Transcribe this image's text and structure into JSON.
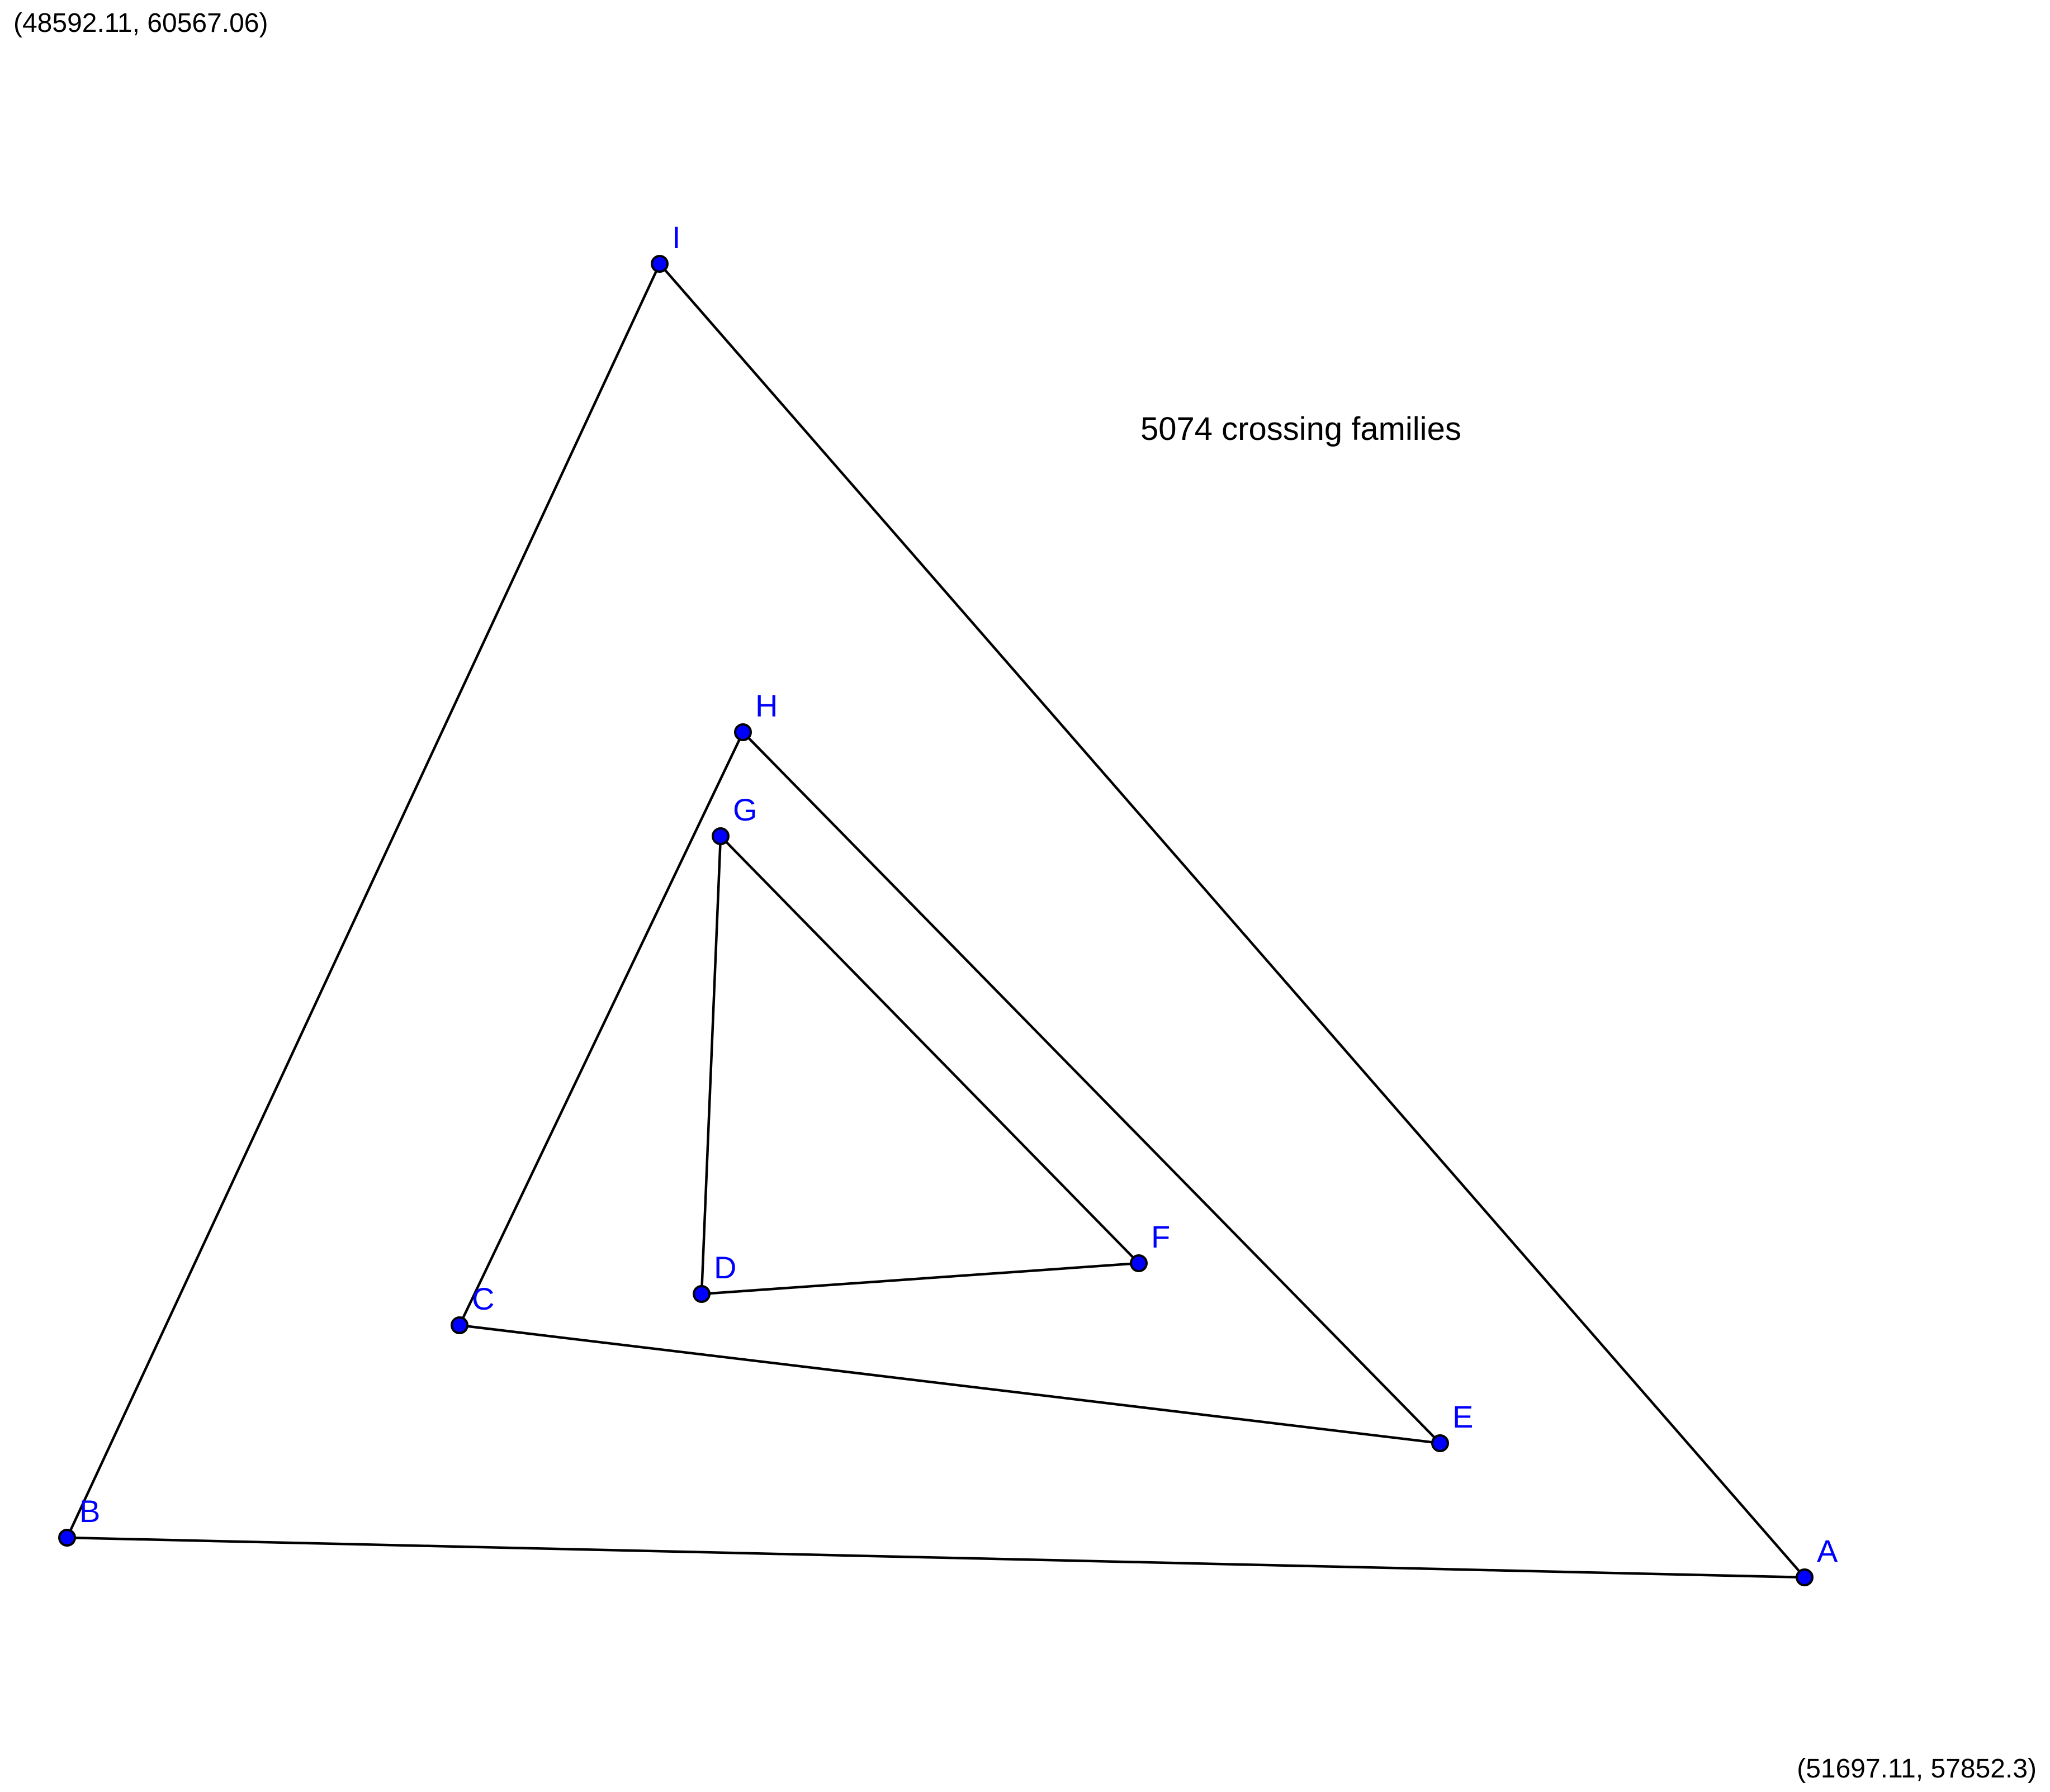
{
  "viewport": {
    "top_left_label": "(48592.11, 60567.06)",
    "bottom_right_label": "(51697.11, 57852.3)"
  },
  "info_text": "5074 crossing families",
  "colors": {
    "vertex_fill": "#0000ff",
    "label": "#0000ff",
    "edge": "#000000"
  },
  "vertices": [
    {
      "id": "A",
      "label": "A"
    },
    {
      "id": "B",
      "label": "B"
    },
    {
      "id": "C",
      "label": "C"
    },
    {
      "id": "D",
      "label": "D"
    },
    {
      "id": "E",
      "label": "E"
    },
    {
      "id": "F",
      "label": "F"
    },
    {
      "id": "G",
      "label": "G"
    },
    {
      "id": "H",
      "label": "H"
    },
    {
      "id": "I",
      "label": "I"
    }
  ],
  "edges": [
    [
      "I",
      "A"
    ],
    [
      "A",
      "B"
    ],
    [
      "B",
      "I"
    ],
    [
      "H",
      "E"
    ],
    [
      "E",
      "C"
    ],
    [
      "C",
      "H"
    ],
    [
      "G",
      "F"
    ],
    [
      "F",
      "D"
    ],
    [
      "D",
      "G"
    ]
  ]
}
